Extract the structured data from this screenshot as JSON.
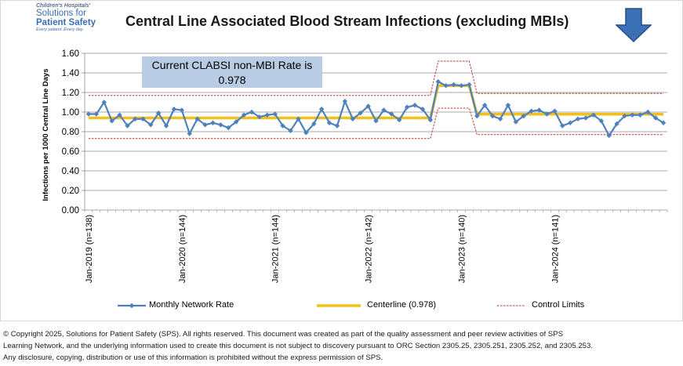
{
  "logo": {
    "line1": "Children's Hospitals'",
    "line2": "Solutions for",
    "line3": "Patient Safety",
    "line4": "Every patient. Every day."
  },
  "header": {
    "title": "Central Line Associated Blood Stream Infections (excluding MBIs)",
    "arrow_color": "#3b6fb6"
  },
  "rate_box": {
    "line1": "Current CLABSI non-MBI Rate is",
    "line2": "0.978"
  },
  "chart_data": {
    "type": "line",
    "title": "Central Line Associated Blood Stream Infections (excluding MBIs)",
    "ylabel": "Infections per 1000 Central Line Days",
    "xlabel": "",
    "ylim": [
      0,
      1.6
    ],
    "yticks": [
      "0.00",
      "0.20",
      "0.40",
      "0.60",
      "0.80",
      "1.00",
      "1.20",
      "1.40",
      "1.60"
    ],
    "grid": true,
    "legend_position": "bottom",
    "colors": {
      "rate": "#4f81bd",
      "centerline": "#f2c01e",
      "limits": "#c0392b"
    },
    "x_tick_labels": [
      {
        "index": 0,
        "label": "Jan-2019 (n=138)"
      },
      {
        "index": 12,
        "label": "Jan-2020 (n=144)"
      },
      {
        "index": 24,
        "label": "Jan-2021 (n=144)"
      },
      {
        "index": 36,
        "label": "Jan-2022 (n=142)"
      },
      {
        "index": 48,
        "label": "Jan-2023 (n=140)"
      },
      {
        "index": 60,
        "label": "Jan-2024 (n=141)"
      }
    ],
    "series": [
      {
        "name": "Monthly Network Rate",
        "style": "line-markers",
        "values": [
          0.98,
          0.98,
          1.1,
          0.91,
          0.97,
          0.86,
          0.93,
          0.93,
          0.87,
          0.99,
          0.86,
          1.03,
          1.02,
          0.78,
          0.93,
          0.87,
          0.89,
          0.87,
          0.84,
          0.9,
          0.97,
          1.0,
          0.95,
          0.97,
          0.98,
          0.86,
          0.81,
          0.93,
          0.79,
          0.88,
          1.03,
          0.89,
          0.86,
          1.11,
          0.93,
          0.99,
          1.06,
          0.91,
          1.02,
          0.98,
          0.92,
          1.05,
          1.07,
          1.03,
          0.92,
          1.31,
          1.27,
          1.28,
          1.27,
          1.28,
          0.96,
          1.07,
          0.96,
          0.93,
          1.07,
          0.9,
          0.96,
          1.01,
          1.02,
          0.98,
          1.01,
          0.86,
          0.89,
          0.93,
          0.94,
          0.97,
          0.91,
          0.76,
          0.88,
          0.96,
          0.97,
          0.97,
          1.0,
          0.94,
          0.89
        ]
      },
      {
        "name": "Centerline (0.978)",
        "style": "step",
        "segments": [
          {
            "start": 0,
            "end": 44,
            "value": 0.94
          },
          {
            "start": 45,
            "end": 49,
            "value": 1.27
          },
          {
            "start": 50,
            "end": 74,
            "value": 0.978
          }
        ]
      },
      {
        "name": "Control Limits",
        "style": "dashed",
        "upper": [
          {
            "start": 0,
            "end": 44,
            "value": 1.17
          },
          {
            "start": 45,
            "end": 49,
            "value": 1.52
          },
          {
            "start": 50,
            "end": 74,
            "value": 1.19
          }
        ],
        "lower": [
          {
            "start": 0,
            "end": 44,
            "value": 0.73
          },
          {
            "start": 45,
            "end": 49,
            "value": 1.04
          },
          {
            "start": 50,
            "end": 74,
            "value": 0.77
          }
        ]
      }
    ]
  },
  "legend": {
    "rate_label": "Monthly Network Rate",
    "center_label": "Centerline (0.978)",
    "limits_label": "Control Limits"
  },
  "footer": {
    "line1": "© Copyright 2025, Solutions for Patient Safety (SPS).  All rights reserved.  This document was created as part of the quality assessment and peer review activities of SPS",
    "line2": "Learning Network, and the underlying information used to create this document is not subject to discovery pursuant to ORC Section 2305.25, 2305.251, 2305.252, and 2305.253.",
    "line3": "Any disclosure, copying, distribution or use of this information is prohibited without the express permission of SPS."
  }
}
